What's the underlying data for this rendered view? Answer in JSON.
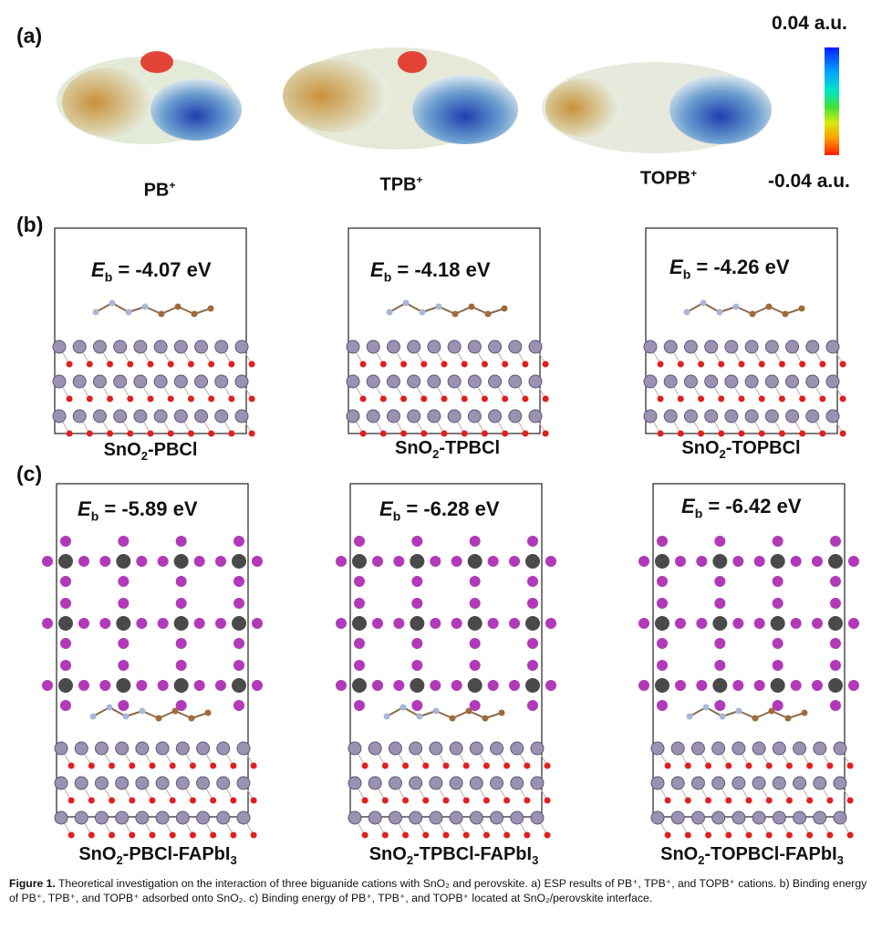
{
  "panels": {
    "a": "(a)",
    "b": "(b)",
    "c": "(c)"
  },
  "colorbar": {
    "max": "0.04 a.u.",
    "min": "-0.04 a.u."
  },
  "molecules": [
    {
      "name": "PB",
      "sup": "+"
    },
    {
      "name": "TPB",
      "sup": "+"
    },
    {
      "name": "TOPB",
      "sup": "+"
    }
  ],
  "row_b": [
    {
      "eb_symbol": "E",
      "eb_sub": "b",
      "eb_value": " = -4.07 eV",
      "label_pre": "SnO",
      "label_sub": "2",
      "label_post": "-PBCl"
    },
    {
      "eb_symbol": "E",
      "eb_sub": "b",
      "eb_value": " = -4.18 eV",
      "label_pre": "SnO",
      "label_sub": "2",
      "label_post": "-TPBCl"
    },
    {
      "eb_symbol": "E",
      "eb_sub": "b",
      "eb_value": " = -4.26 eV",
      "label_pre": "SnO",
      "label_sub": "2",
      "label_post": "-TOPBCl"
    }
  ],
  "row_c": [
    {
      "eb_symbol": "E",
      "eb_sub": "b",
      "eb_value": " = -5.89 eV",
      "label_pre": "SnO",
      "label_sub": "2",
      "label_mid": "-PBCl-FAPbI",
      "label_sub2": "3"
    },
    {
      "eb_symbol": "E",
      "eb_sub": "b",
      "eb_value": " = -6.28 eV",
      "label_pre": "SnO",
      "label_sub": "2",
      "label_mid": "-TPBCl-FAPbI",
      "label_sub2": "3"
    },
    {
      "eb_symbol": "E",
      "eb_sub": "b",
      "eb_value": " = -6.42 eV",
      "label_pre": "SnO",
      "label_sub": "2",
      "label_mid": "-TOPBCl-FAPbI",
      "label_sub2": "3"
    }
  ],
  "caption": {
    "figure": "Figure 1.",
    "text": "Theoretical investigation on the interaction of three biguanide cations with SnO₂ and perovskite. a) ESP results of PB⁺, TPB⁺, and TOPB⁺ cations. b) Binding energy of PB⁺, TPB⁺, and TOPB⁺ adsorbed onto SnO₂. c) Binding energy of PB⁺, TPB⁺, and TOPB⁺ located at SnO₂/perovskite interface."
  }
}
